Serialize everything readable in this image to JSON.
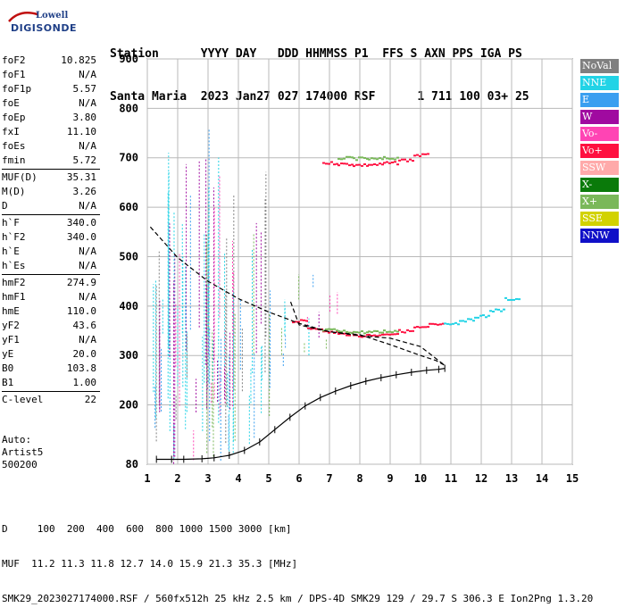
{
  "logo": {
    "brand_top": "Lowell",
    "brand_main": "DIGISONDE"
  },
  "header": {
    "line1": "Station      YYYY DAY   DDD HHMMSS P1  FFS S AXN PPS IGA PS",
    "line2": "Santa Maria  2023 Jan27 027 174000 RSF      1 711 100 03+ 25"
  },
  "params": {
    "group1": [
      {
        "k": "foF2",
        "v": "10.825"
      },
      {
        "k": "foF1",
        "v": "N/A"
      },
      {
        "k": "foF1p",
        "v": "5.57"
      },
      {
        "k": "foE",
        "v": "N/A"
      },
      {
        "k": "foEp",
        "v": "3.80"
      },
      {
        "k": "fxI",
        "v": "11.10"
      },
      {
        "k": "foEs",
        "v": "N/A"
      },
      {
        "k": "fmin",
        "v": "5.72"
      }
    ],
    "group2": [
      {
        "k": "MUF(D)",
        "v": "35.31"
      },
      {
        "k": "M(D)",
        "v": "3.26"
      },
      {
        "k": "D",
        "v": "N/A"
      }
    ],
    "group3": [
      {
        "k": "h`F",
        "v": "340.0"
      },
      {
        "k": "h`F2",
        "v": "340.0"
      },
      {
        "k": "h`E",
        "v": "N/A"
      },
      {
        "k": "h`Es",
        "v": "N/A"
      }
    ],
    "group4": [
      {
        "k": "hmF2",
        "v": "274.9"
      },
      {
        "k": "hmF1",
        "v": "N/A"
      },
      {
        "k": "hmE",
        "v": "110.0"
      },
      {
        "k": "yF2",
        "v": "43.6"
      },
      {
        "k": "yF1",
        "v": "N/A"
      },
      {
        "k": "yE",
        "v": "20.0"
      },
      {
        "k": "B0",
        "v": "103.8"
      },
      {
        "k": "B1",
        "v": "1.00"
      }
    ],
    "group5": [
      {
        "k": "C-level",
        "v": "22"
      }
    ]
  },
  "auto": {
    "line1": "Auto:",
    "line2": "Artist5",
    "line3": "500200"
  },
  "legend": [
    {
      "label": "NoVal",
      "color": "#808080"
    },
    {
      "label": "NNE",
      "color": "#22d3e6"
    },
    {
      "label": "E",
      "color": "#3a9ff0"
    },
    {
      "label": "W",
      "color": "#a00aa0"
    },
    {
      "label": "Vo-",
      "color": "#ff44b4"
    },
    {
      "label": "Vo+",
      "color": "#ff1040"
    },
    {
      "label": "SSW",
      "color": "#ffaaaa"
    },
    {
      "label": "X-",
      "color": "#0a7a0a"
    },
    {
      "label": "X+",
      "color": "#7ab85a"
    },
    {
      "label": "SSE",
      "color": "#d2d200"
    },
    {
      "label": "NNW",
      "color": "#1010c8"
    }
  ],
  "chart_data": {
    "type": "scatter",
    "x_ticks": [
      "1",
      "2",
      "3",
      "4",
      "5",
      "6",
      "7",
      "8",
      "9",
      "10",
      "11",
      "12",
      "13",
      "14",
      "15"
    ],
    "y_ticks": [
      "80",
      "200",
      "300",
      "400",
      "500",
      "600",
      "700",
      "800",
      "900"
    ],
    "xlim": [
      1,
      15
    ],
    "ylim": [
      80,
      900
    ],
    "grid": true,
    "series": [
      {
        "name": "Vo+",
        "color": "#ff1040",
        "x": [
          7.0,
          7.5,
          8.0,
          8.5,
          9.0,
          9.5,
          10.0
        ],
        "y": [
          690,
          688,
          686,
          687,
          690,
          696,
          706
        ]
      },
      {
        "name": "X+",
        "color": "#7ab85a",
        "x": [
          7.5,
          8.0,
          8.5,
          9.0
        ],
        "y": [
          700,
          699,
          698,
          700
        ]
      },
      {
        "name": "Vo+",
        "color": "#ff1040",
        "x": [
          6.0,
          6.5,
          7.0,
          7.5,
          8.0,
          8.5,
          9.0,
          9.5,
          10.0,
          10.5
        ],
        "y": [
          370,
          356,
          348,
          344,
          341,
          342,
          345,
          350,
          357,
          363
        ]
      },
      {
        "name": "X+",
        "color": "#7ab85a",
        "x": [
          7.0,
          7.5,
          8.0,
          8.5,
          9.0
        ],
        "y": [
          352,
          349,
          348,
          348,
          350
        ]
      },
      {
        "name": "NNE",
        "color": "#22d3e6",
        "x": [
          11.0,
          11.5,
          12.0,
          12.5,
          13.0
        ],
        "y": [
          366,
          372,
          380,
          392,
          415
        ]
      }
    ],
    "trace_profile": {
      "x": [
        1.3,
        1.8,
        2.2,
        2.8,
        3.2,
        3.7,
        4.2,
        4.7,
        5.2,
        5.7,
        6.2,
        6.7,
        7.2,
        7.7,
        8.2,
        8.7,
        9.2,
        9.7,
        10.2,
        10.6,
        10.8
      ],
      "y": [
        90,
        90,
        90,
        91,
        93,
        98,
        108,
        125,
        150,
        175,
        198,
        215,
        228,
        239,
        248,
        255,
        261,
        266,
        270,
        272,
        274
      ]
    },
    "trace_dashed": {
      "x": [
        1.1,
        2.0,
        3.0,
        4.0,
        5.0,
        6.0,
        7.0,
        8.0,
        9.0,
        10.0,
        10.8,
        10.5,
        10.0,
        9.0,
        8.0,
        7.0,
        6.0,
        5.7
      ],
      "y": [
        560,
        498,
        450,
        415,
        388,
        365,
        348,
        340,
        335,
        318,
        280,
        290,
        300,
        322,
        342,
        348,
        362,
        412
      ]
    }
  },
  "footer": {
    "line1": "D     100  200  400  600  800 1000 1500 3000 [km]",
    "line2": "MUF  11.2 11.3 11.8 12.7 14.0 15.9 21.3 35.3 [MHz]",
    "line3": "SMK29_2023027174000.RSF / 560fx512h 25 kHz 2.5 km / DPS-4D SMK29 129 / 29.7 S 306.3 E Ion2Png 1.3.20"
  }
}
